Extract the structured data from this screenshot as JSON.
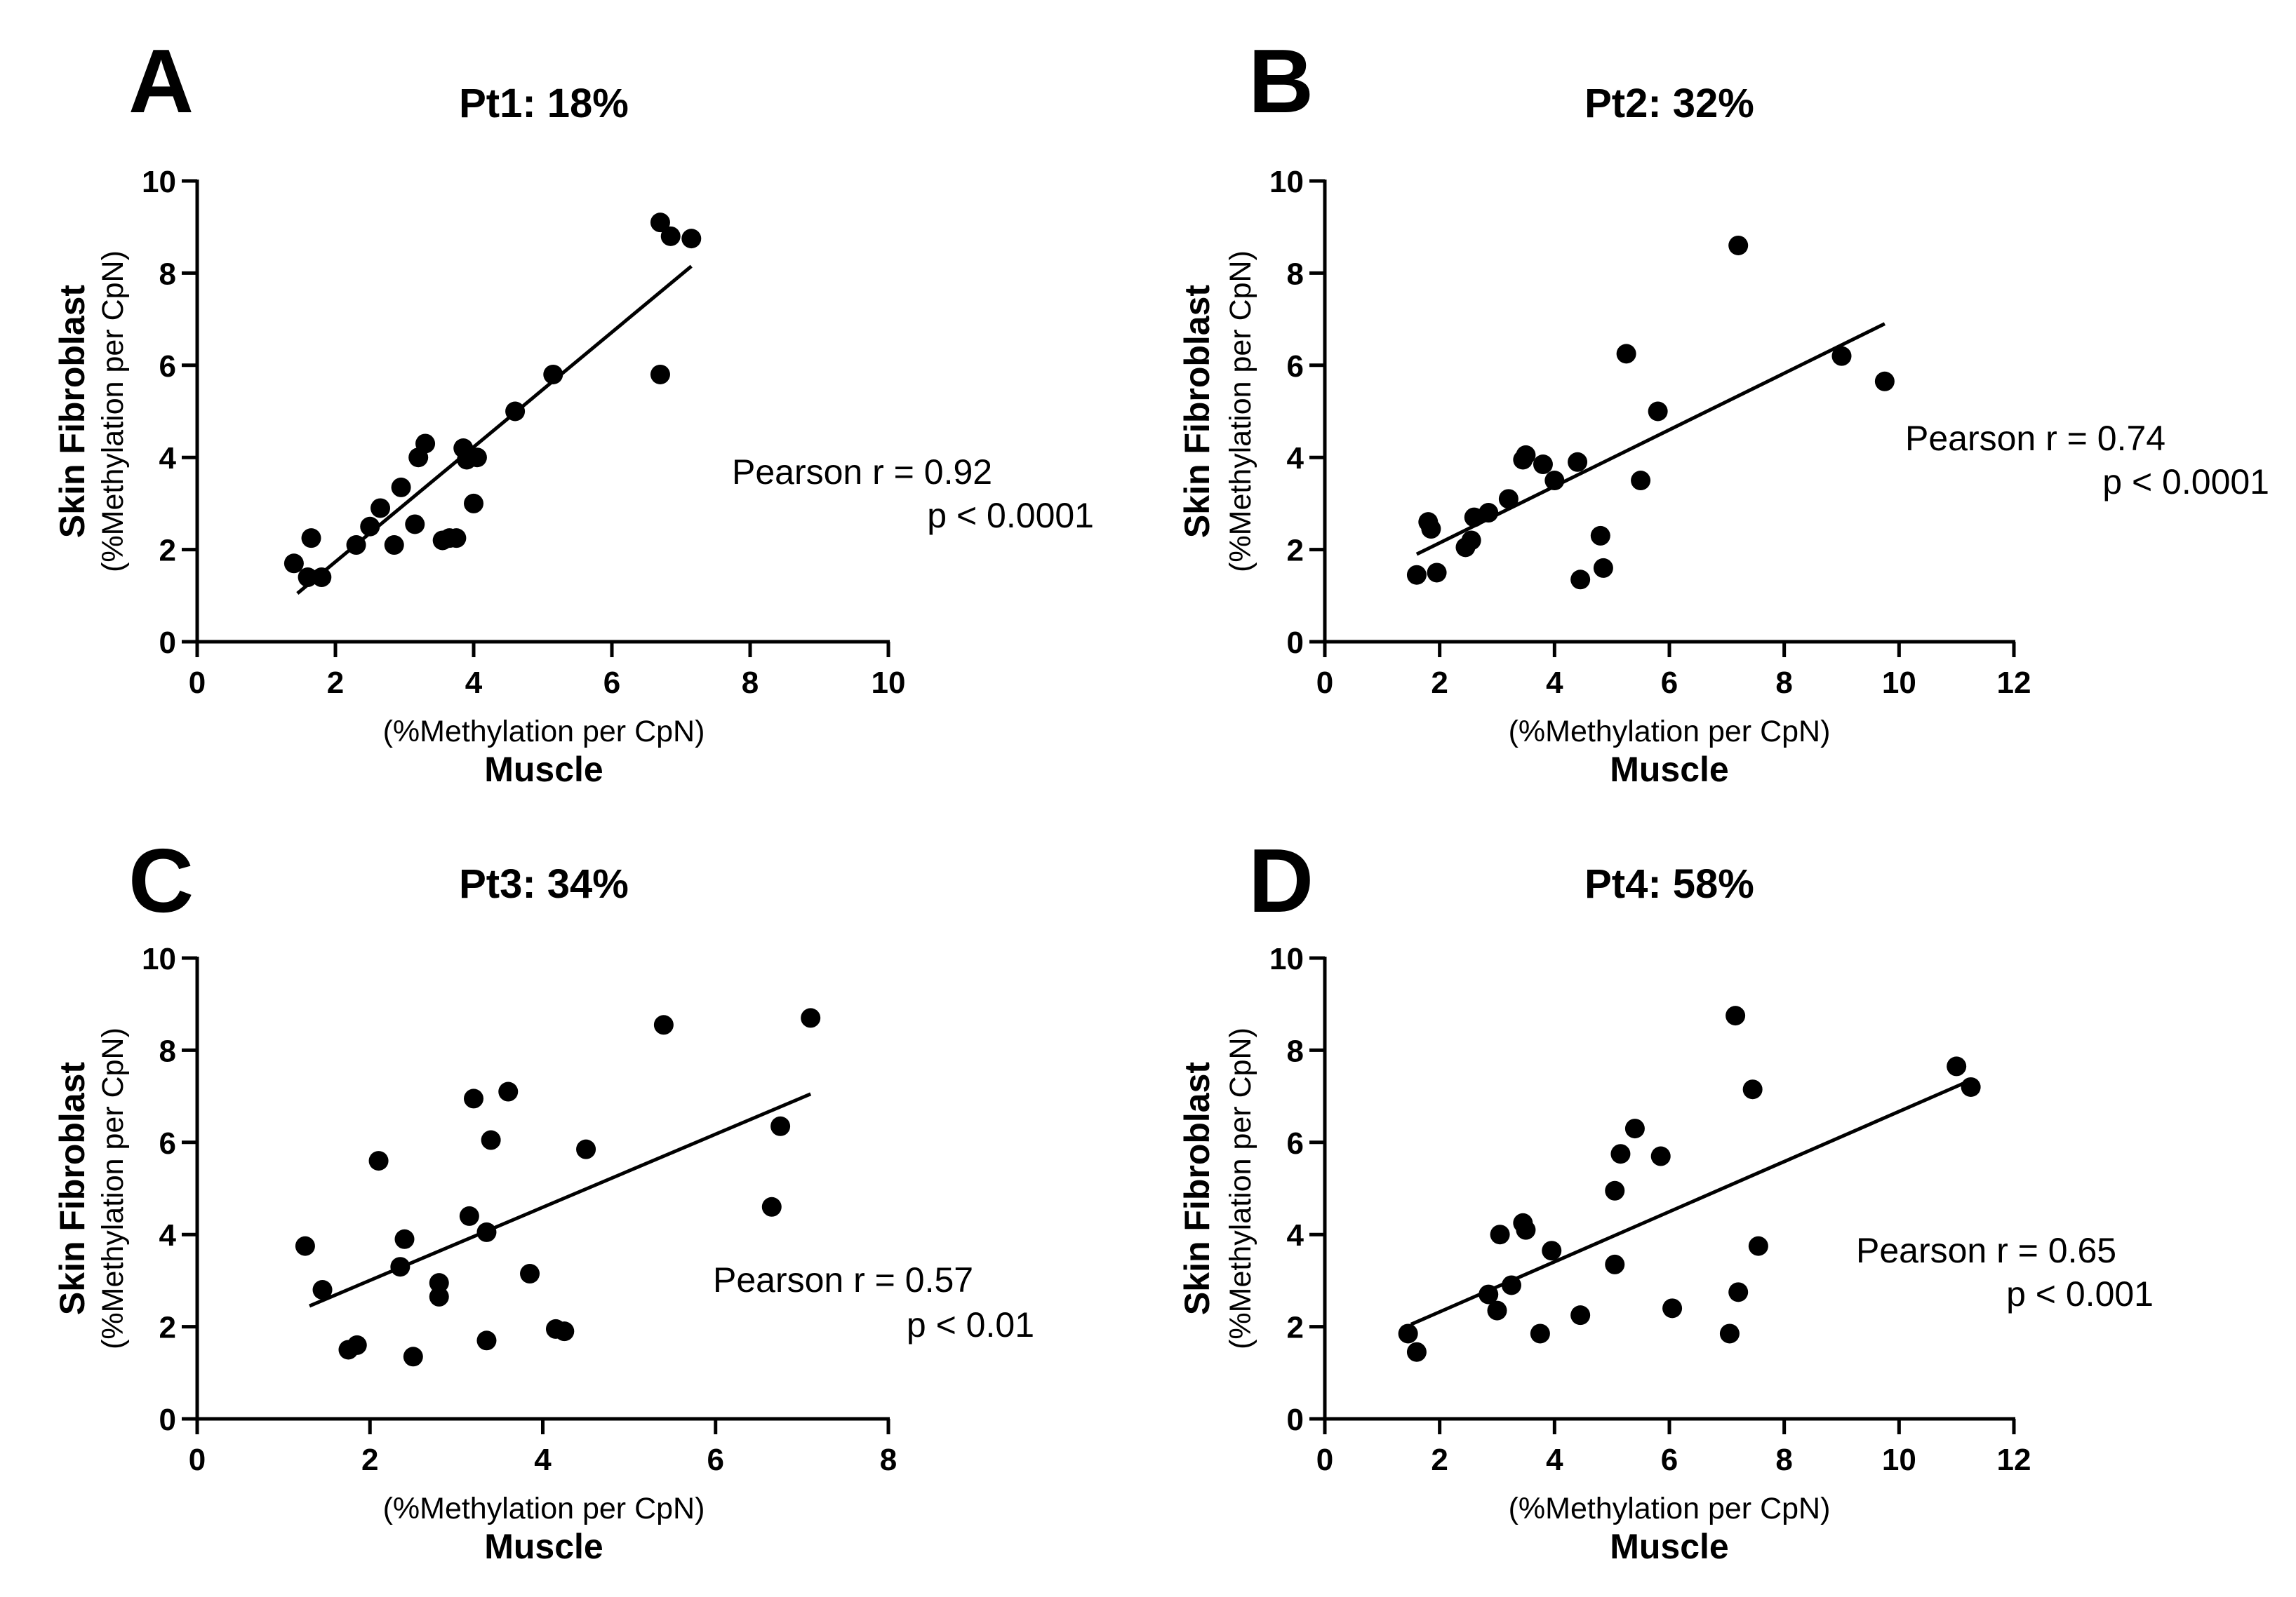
{
  "chart_data": [
    {
      "type": "scatter",
      "panel_label": "A",
      "title": "Pt1: 18%",
      "xlabel": "Muscle",
      "xlabel_sub": "(%Methylation per CpN)",
      "ylabel": "Skin Fibroblast",
      "ylabel_sub": "(%Methylation per CpN)",
      "xlim": [
        0,
        10
      ],
      "ylim": [
        0,
        10
      ],
      "xticks": [
        0,
        2,
        4,
        6,
        8,
        10
      ],
      "yticks": [
        0,
        2,
        4,
        6,
        8,
        10
      ],
      "stat_r": "Pearson r = 0.92",
      "stat_p": "p < 0.0001",
      "points": [
        [
          1.4,
          1.7
        ],
        [
          1.6,
          1.4
        ],
        [
          1.65,
          2.25
        ],
        [
          1.8,
          1.4
        ],
        [
          2.3,
          2.1
        ],
        [
          2.5,
          2.5
        ],
        [
          2.65,
          2.9
        ],
        [
          2.85,
          2.1
        ],
        [
          2.95,
          3.35
        ],
        [
          3.15,
          2.55
        ],
        [
          3.2,
          4.0
        ],
        [
          3.3,
          4.3
        ],
        [
          3.55,
          2.2
        ],
        [
          3.65,
          2.25
        ],
        [
          3.75,
          2.25
        ],
        [
          3.85,
          4.2
        ],
        [
          3.9,
          3.95
        ],
        [
          4.0,
          3.0
        ],
        [
          4.05,
          4.0
        ],
        [
          4.6,
          5.0
        ],
        [
          5.15,
          5.8
        ],
        [
          6.7,
          5.8
        ],
        [
          6.7,
          9.1
        ],
        [
          6.85,
          8.8
        ],
        [
          7.15,
          8.75
        ]
      ],
      "fit": {
        "x": [
          1.45,
          7.15
        ],
        "y": [
          1.05,
          8.15
        ]
      }
    },
    {
      "type": "scatter",
      "panel_label": "B",
      "title": "Pt2: 32%",
      "xlabel": "Muscle",
      "xlabel_sub": "(%Methylation per CpN)",
      "ylabel": "Skin Fibroblast",
      "ylabel_sub": "(%Methylation per CpN)",
      "xlim": [
        0,
        12
      ],
      "ylim": [
        0,
        10
      ],
      "xticks": [
        0,
        2,
        4,
        6,
        8,
        10,
        12
      ],
      "yticks": [
        0,
        2,
        4,
        6,
        8,
        10
      ],
      "stat_r": "Pearson r = 0.74",
      "stat_p": "p < 0.0001",
      "points": [
        [
          1.6,
          1.45
        ],
        [
          1.8,
          2.6
        ],
        [
          1.85,
          2.45
        ],
        [
          1.95,
          1.5
        ],
        [
          2.45,
          2.05
        ],
        [
          2.55,
          2.2
        ],
        [
          2.6,
          2.7
        ],
        [
          2.85,
          2.8
        ],
        [
          3.2,
          3.1
        ],
        [
          3.45,
          3.95
        ],
        [
          3.5,
          4.05
        ],
        [
          3.8,
          3.85
        ],
        [
          4.0,
          3.5
        ],
        [
          4.4,
          3.9
        ],
        [
          4.45,
          1.35
        ],
        [
          4.8,
          2.3
        ],
        [
          4.85,
          1.6
        ],
        [
          5.25,
          6.25
        ],
        [
          5.5,
          3.5
        ],
        [
          5.8,
          5.0
        ],
        [
          7.2,
          8.6
        ],
        [
          9.0,
          6.2
        ],
        [
          9.75,
          5.65
        ]
      ],
      "fit": {
        "x": [
          1.6,
          9.75
        ],
        "y": [
          1.9,
          6.9
        ]
      }
    },
    {
      "type": "scatter",
      "panel_label": "C",
      "title": "Pt3: 34%",
      "xlabel": "Muscle",
      "xlabel_sub": "(%Methylation per CpN)",
      "ylabel": "Skin Fibroblast",
      "ylabel_sub": "(%Methylation per CpN)",
      "xlim": [
        0,
        8
      ],
      "ylim": [
        0,
        10
      ],
      "xticks": [
        0,
        2,
        4,
        6,
        8
      ],
      "yticks": [
        0,
        2,
        4,
        6,
        8,
        10
      ],
      "stat_r": "Pearson r = 0.57",
      "stat_p": "p < 0.01",
      "points": [
        [
          1.25,
          3.75
        ],
        [
          1.45,
          2.8
        ],
        [
          1.75,
          1.5
        ],
        [
          1.85,
          1.6
        ],
        [
          2.1,
          5.6
        ],
        [
          2.35,
          3.3
        ],
        [
          2.4,
          3.9
        ],
        [
          2.5,
          1.35
        ],
        [
          2.8,
          2.95
        ],
        [
          2.8,
          2.65
        ],
        [
          3.15,
          4.4
        ],
        [
          3.2,
          6.95
        ],
        [
          3.35,
          4.05
        ],
        [
          3.35,
          1.7
        ],
        [
          3.4,
          6.05
        ],
        [
          3.6,
          7.1
        ],
        [
          3.85,
          3.15
        ],
        [
          4.15,
          1.95
        ],
        [
          4.25,
          1.9
        ],
        [
          4.5,
          5.85
        ],
        [
          5.4,
          8.55
        ],
        [
          6.65,
          4.6
        ],
        [
          6.75,
          6.35
        ],
        [
          7.1,
          8.7
        ]
      ],
      "fit": {
        "x": [
          1.3,
          7.1
        ],
        "y": [
          2.45,
          7.05
        ]
      }
    },
    {
      "type": "scatter",
      "panel_label": "D",
      "title": "Pt4: 58%",
      "xlabel": "Muscle",
      "xlabel_sub": "(%Methylation per CpN)",
      "ylabel": "Skin Fibroblast",
      "ylabel_sub": "(%Methylation per CpN)",
      "xlim": [
        0,
        12
      ],
      "ylim": [
        0,
        10
      ],
      "xticks": [
        0,
        2,
        4,
        6,
        8,
        10,
        12
      ],
      "yticks": [
        0,
        2,
        4,
        6,
        8,
        10
      ],
      "stat_r": "Pearson r = 0.65",
      "stat_p": "p < 0.001",
      "points": [
        [
          1.45,
          1.85
        ],
        [
          1.6,
          1.45
        ],
        [
          2.85,
          2.7
        ],
        [
          3.0,
          2.35
        ],
        [
          3.05,
          4.0
        ],
        [
          3.25,
          2.9
        ],
        [
          3.45,
          4.25
        ],
        [
          3.5,
          4.1
        ],
        [
          3.75,
          1.85
        ],
        [
          3.95,
          3.65
        ],
        [
          4.45,
          2.25
        ],
        [
          5.05,
          3.35
        ],
        [
          5.05,
          4.95
        ],
        [
          5.15,
          5.75
        ],
        [
          5.4,
          6.3
        ],
        [
          5.85,
          5.7
        ],
        [
          6.05,
          2.4
        ],
        [
          7.05,
          1.85
        ],
        [
          7.15,
          8.75
        ],
        [
          7.2,
          2.75
        ],
        [
          7.45,
          7.15
        ],
        [
          7.55,
          3.75
        ],
        [
          11.0,
          7.65
        ],
        [
          11.25,
          7.2
        ]
      ],
      "fit": {
        "x": [
          1.5,
          11.25
        ],
        "y": [
          2.05,
          7.35
        ]
      }
    }
  ]
}
